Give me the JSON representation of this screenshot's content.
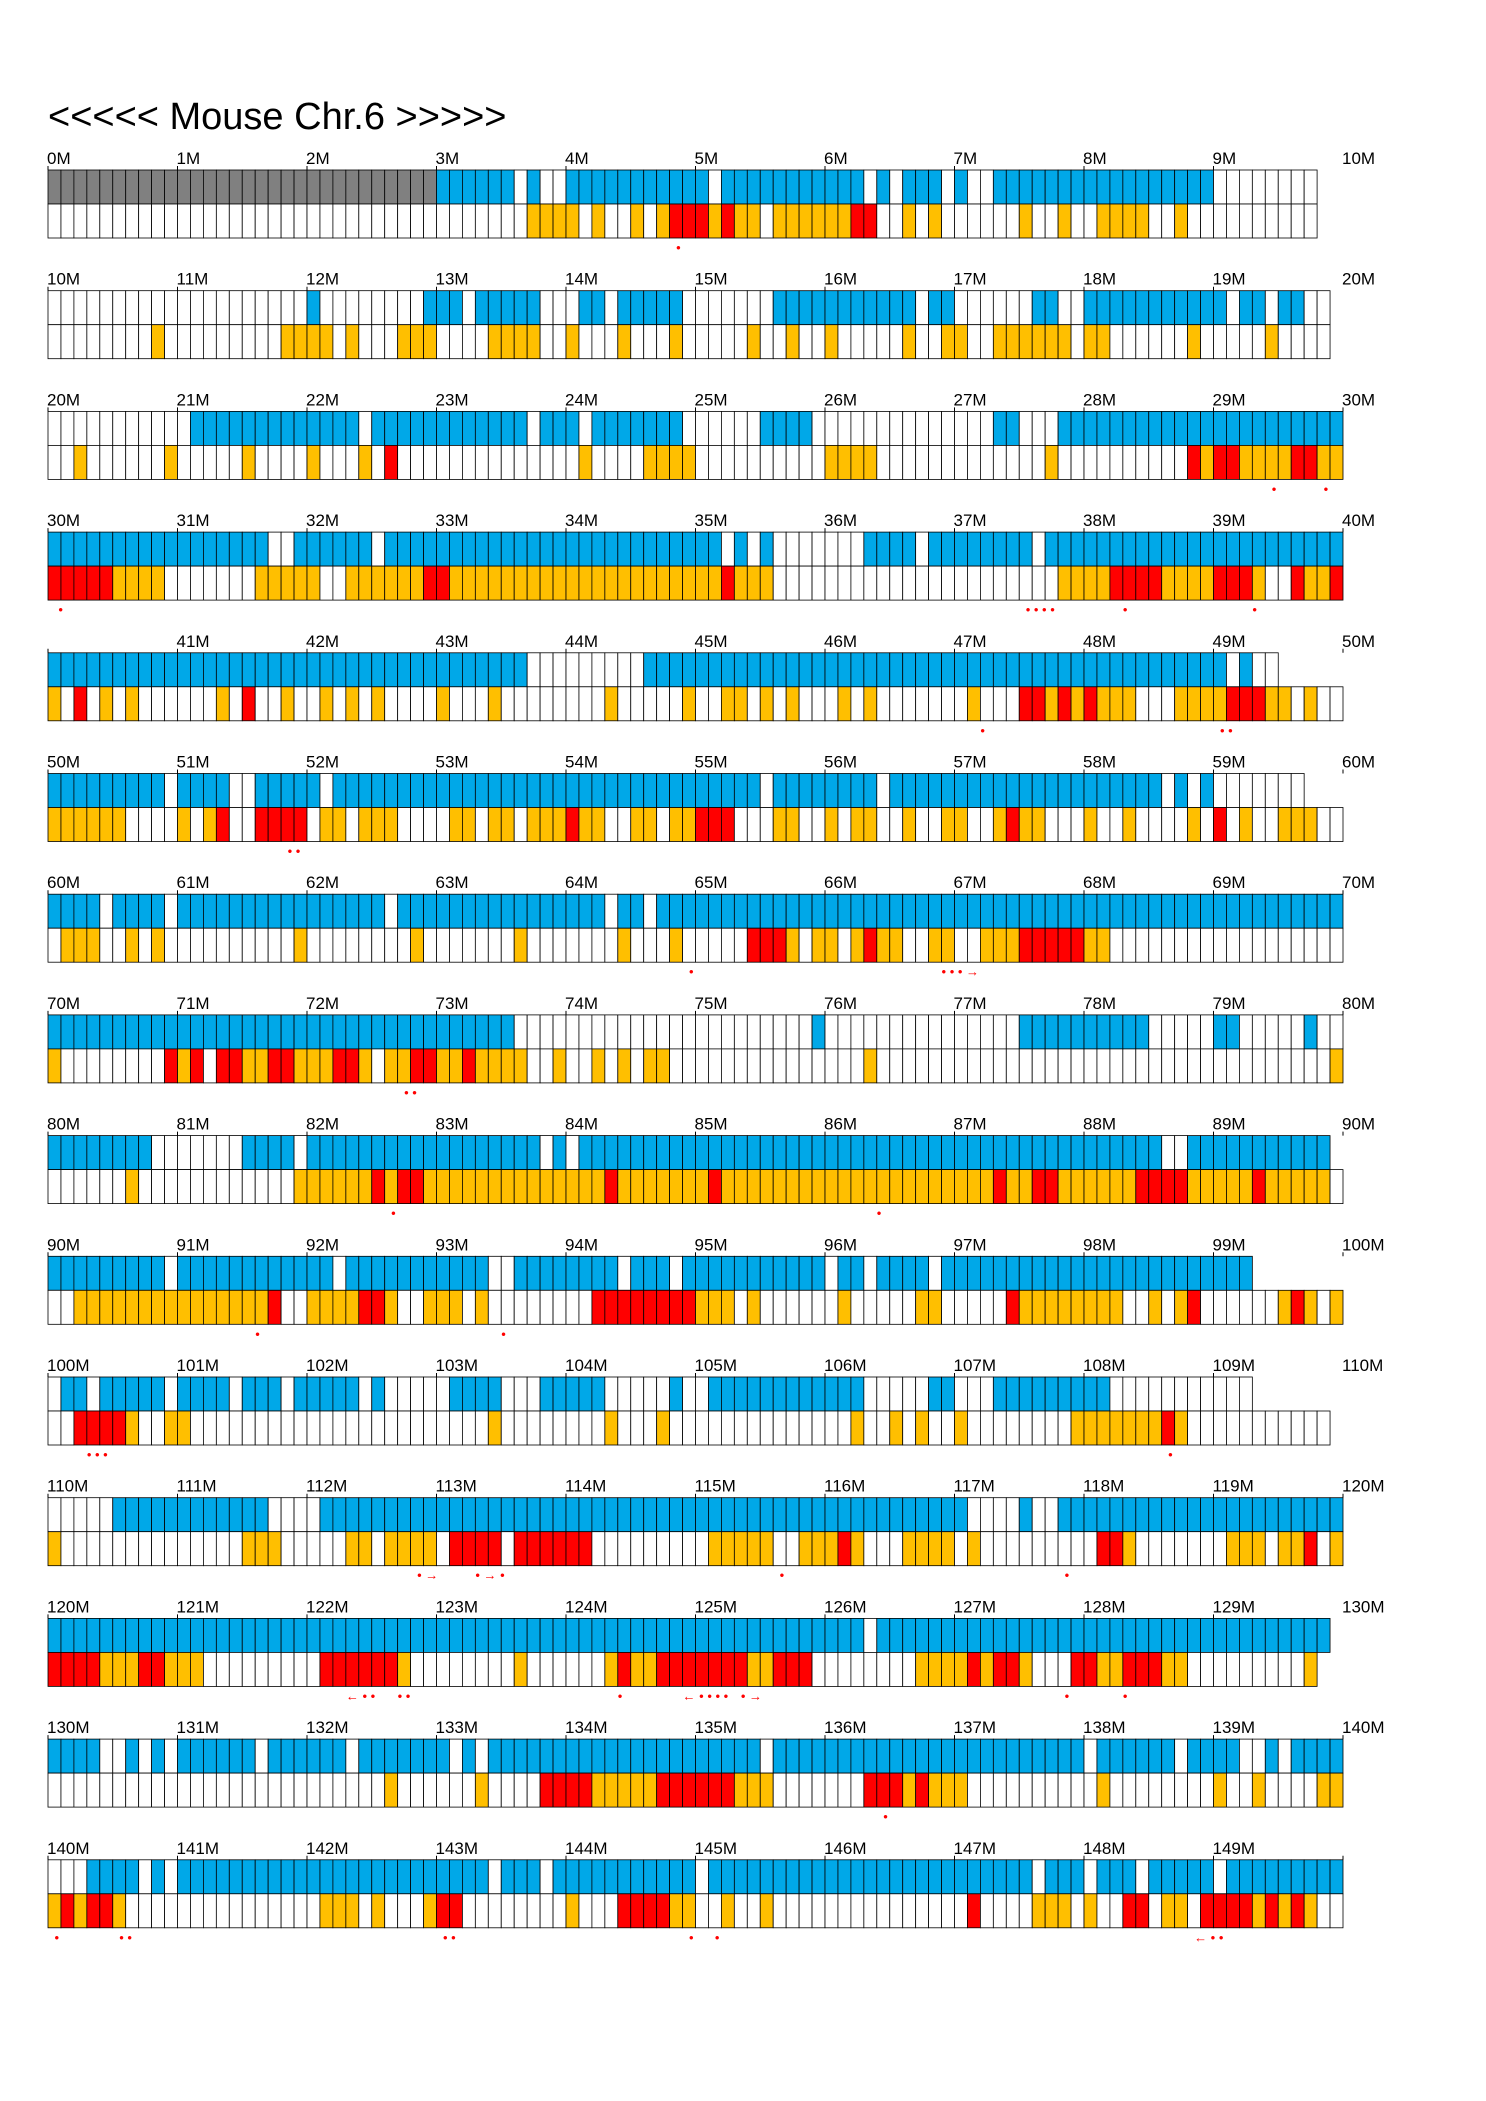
{
  "title": "<<<<< Mouse Chr.6 >>>>>",
  "chart_data": {
    "type": "heatmap",
    "title": "<<<<< Mouse Chr.6 >>>>>",
    "bin_unit": "0.1 Mb",
    "tracks": [
      "upper",
      "lower"
    ],
    "colors": {
      "unsequenced": "#808080",
      "upper_covered": "#00a8e8",
      "lower_covered": "#ffbf00",
      "lower_marked": "#ff0000",
      "empty": "#ffffff",
      "marker": "#ff0000"
    },
    "rows": [
      {
        "start_label": "0M",
        "tick_labels": [
          "0M",
          "1M",
          "2M",
          "3M",
          "4M",
          "5M",
          "6M",
          "7M",
          "8M",
          "9M",
          "10M"
        ],
        "upper": "GGGGGGGGGGGGGGGGGGGGGGGGGGGGGGBBBBBB.B..BBBBBBBBBBB.BBBBBBBBBBB.B.BBB.B..BBBBBBBBBBBBBBBBB........",
        "lower": ".....................................OOOO.O..O.ORRROROO.OOOOOORR..O.O......O..O..OOOO..O..........",
        "markers": [
          {
            "pos": 48.5,
            "text": "•"
          }
        ]
      },
      {
        "start_label": "10M",
        "tick_labels": [
          "10M",
          "11M",
          "12M",
          "13M",
          "14M",
          "15M",
          "16M",
          "17M",
          "18M",
          "19M",
          "20M"
        ],
        "upper": "....................B........BBB.BBBBB...BB.BBBBB.......BBBBBBBBBBB.BB......BB..BBBBBBBBBBB.BB.BB..",
        "lower": "........O.........OOOO.O...OOO....OOOO..O...O...O.....O..O..O.....O..OO..OOOOOO.OO......O.....O....",
        "markers": []
      },
      {
        "start_label": "20M",
        "tick_labels": [
          "20M",
          "21M",
          "22M",
          "23M",
          "24M",
          "25M",
          "26M",
          "27M",
          "28M",
          "29M",
          "30M"
        ],
        "upper": "...........BBBBBBBBBBBBB.BBBBBBBBBBBB.BBB.BBBBBBB......BBBB..............BB...BBBBBBBBBBBBBBBBBBBBBB",
        "lower": "..O......O.....O....O...O.R..............O....OOOO..........OOOO.............O..........RORROOOORROOR",
        "markers": [
          {
            "pos": 94.5,
            "text": "•"
          },
          {
            "pos": 98.5,
            "text": "•"
          }
        ]
      },
      {
        "start_label": "30M",
        "tick_labels": [
          "30M",
          "31M",
          "32M",
          "33M",
          "34M",
          "35M",
          "36M",
          "37M",
          "38M",
          "39M",
          "40M"
        ],
        "upper": "BBBBBBBBBBBBBBBBB..BBBBBB.BBBBBBBBBBBBBBBBBBBBBBBBBB.B.B.......BBBB.BBBBBBBB.BBBBBBBBBBBBBBBBBBBBBBBB",
        "lower": "RRRRROOOO.......OOOOO..OOOOOORROOOOOOOOOOOOOOOOOOOOOROOO......................OOOORRRROOOORRRO..ROORRROOOO",
        "markers": [
          {
            "pos": 0.8,
            "text": "•"
          },
          {
            "pos": 75.5,
            "text": "• • • •"
          },
          {
            "pos": 83,
            "text": "•"
          },
          {
            "pos": 93,
            "text": "•"
          }
        ]
      },
      {
        "start_label": "",
        "tick_labels": [
          "",
          "41M",
          "42M",
          "43M",
          "44M",
          "45M",
          "46M",
          "47M",
          "48M",
          "49M",
          "50M"
        ],
        "upper": "BBBBBBBBBBBBBBBBBBBBBBBBBBBBBBBBBBBBB.........BBBBBBBBBBBBBBBBBBBBBBBBBBBBBBBBBBBBBBBBBBBBB.B..",
        "lower": "O.R.O.O......O.R..O..O.O.O....O...O........O.....O..OO.O.O...O.O.......O...RROROROOO...OOOORRROO.O..",
        "markers": [
          {
            "pos": 72,
            "text": "•"
          },
          {
            "pos": 90.5,
            "text": "• •"
          }
        ]
      },
      {
        "start_label": "50M",
        "tick_labels": [
          "50M",
          "51M",
          "52M",
          "53M",
          "54M",
          "55M",
          "56M",
          "57M",
          "58M",
          "59M",
          "60M"
        ],
        "upper": "BBBBBBBBB.BBBB..BBBBB.BBBBBBBBBBBBBBBBBBBBBBBBBBBBBBBBB.BBBBBBBB.BBBBBBBBBBBBBBBBBBBBB.B.B.......",
        "lower": "OOOOOO....O.OR..RRRR.OO.OOO....OO.OO.OOOROO..OO.OORRR...OO..O.OO..O..OO..OROO...O..O....O.R.O..OOO...O",
        "markers": [
          {
            "pos": 18.5,
            "text": "• •"
          }
        ]
      },
      {
        "start_label": "60M",
        "tick_labels": [
          "60M",
          "61M",
          "62M",
          "63M",
          "64M",
          "65M",
          "66M",
          "67M",
          "68M",
          "69M",
          "70M"
        ],
        "upper": "BBBB.BBBB.BBBBBBBBBBBBBBBB.BBBBBBBBBBBBBBBB.BB.BBBBBBBBBBBBBBBBBBBBBBBBBBBBBBBBBBBBBBBBBBBBBBBBBBBBBB",
        "lower": ".OOO..O.O..........O........O.......O.......O...O.....RRRO.OO.OROO..OO..OOORRRRROO...................O...O",
        "markers": [
          {
            "pos": 49.5,
            "text": "•"
          },
          {
            "pos": 69,
            "text": "• • • →"
          }
        ]
      },
      {
        "start_label": "70M",
        "tick_labels": [
          "70M",
          "71M",
          "72M",
          "73M",
          "74M",
          "75M",
          "76M",
          "77M",
          "78M",
          "79M",
          "80M"
        ],
        "upper": "BBBBBBBBBBBBBBBBBBBBBBBBBBBBBBBBBBBB.......................B...............BBBBBBBBBB.....BB.....B....B.B",
        "lower": "O........ROR.RROORROOORRO.OORROOROOOO..O..O.O.OO...............O...................................O....",
        "markers": [
          {
            "pos": 27.5,
            "text": "• •"
          }
        ]
      },
      {
        "start_label": "80M",
        "tick_labels": [
          "80M",
          "81M",
          "82M",
          "83M",
          "84M",
          "85M",
          "86M",
          "87M",
          "88M",
          "89M",
          "90M"
        ],
        "upper": "BBBBBBBB.......BBBB.BBBBBBBBBBBBBBBBBB.B.BBBBBBBBBBBBBBBBBBBBBBBBBBBBBBBBBBBBBBBBBBBBB..BBBBBBBBBBB",
        "lower": "......O............OOOOOORORROOOOOOOOOOOOOOROOOOOOOROOOOOOOOOOOOOOOOOOOOOROORROOOOOORRRROOOOOROOOOO.O.",
        "markers": [
          {
            "pos": 26.5,
            "text": "•"
          },
          {
            "pos": 64,
            "text": "•"
          }
        ]
      },
      {
        "start_label": "90M",
        "tick_labels": [
          "90M",
          "91M",
          "92M",
          "93M",
          "94M",
          "95M",
          "96M",
          "97M",
          "98M",
          "99M",
          "100M"
        ],
        "upper": "BBBBBBBBB.BBBBBBBBBBBB.BBBBBBBBBBB..BBBBBBBB.BBB.BBBBBBBBBBB.BB.BBBB.BBBBBBBBBBBBBBBBBBBBBBBB",
        "lower": "..OOOOOOOOOOOOOOOR..OOOORRO..OOO.O........RRRRRRRROOO.O......O.....OO.....ROOOOOOOO..O.OR......ORO.OO...OO",
        "markers": [
          {
            "pos": 16,
            "text": "•"
          },
          {
            "pos": 35,
            "text": "•"
          }
        ]
      },
      {
        "start_label": "100M",
        "tick_labels": [
          "100M",
          "101M",
          "102M",
          "103M",
          "104M",
          "105M",
          "106M",
          "107M",
          "108M",
          "109M",
          "110M"
        ],
        "upper": ".BB.BBBBB.BBBB.BBB.BBBBB.B.....BBBB...BBBBB.....B..BBBBBBBBBBBB.....BB...BBBBBBBBB...........",
        "lower": "..RRRRO..OO.......................O........O...O..............O..O.O..O........OOOOOOORO...........",
        "markers": [
          {
            "pos": 3,
            "text": "• • •"
          },
          {
            "pos": 86.5,
            "text": "•"
          }
        ]
      },
      {
        "start_label": "110M",
        "tick_labels": [
          "110M",
          "111M",
          "112M",
          "113M",
          "114M",
          "115M",
          "116M",
          "117M",
          "118M",
          "119M",
          "120M"
        ],
        "upper": ".....BBBBBBBBBBBB....BBBBBBBBBBBBBBBBBBBBBBBBBBBBBBBBBBBBBBBBBBBBBBBBBB....B..BBBBBBBBBBBBBBBBBBBBBBB",
        "lower": "O..............OOO.....OO.OOOO.RRRR.RRRRRR.........OOOOO..OOORO...OOOO.O.........RRO.......OOO.OOR.OR",
        "markers": [
          {
            "pos": 28.5,
            "text": "• →"
          },
          {
            "pos": 33,
            "text": "• → •"
          },
          {
            "pos": 56.5,
            "text": "•"
          },
          {
            "pos": 78.5,
            "text": "•"
          }
        ]
      },
      {
        "start_label": "120M",
        "tick_labels": [
          "120M",
          "121M",
          "122M",
          "123M",
          "124M",
          "125M",
          "126M",
          "127M",
          "128M",
          "129M",
          "130M"
        ],
        "upper": "BBBBBBBBBBBBBBBBBBBBBBBBBBBBBBBBBBBBBBBBBBBBBBBBBBBBBBBBBBBBBBB.BBBBBBBBBBBBBBBBBBBBBBBBBBBBBBBBBBB",
        "lower": "RRRROOORROOO.........RRRRRRO........O......OROORRRRRRROORRR........OOOORORRO...RROORRROO.........O",
        "markers": [
          {
            "pos": 23,
            "text": "← • •"
          },
          {
            "pos": 27,
            "text": "• •"
          },
          {
            "pos": 44,
            "text": "•"
          },
          {
            "pos": 49,
            "text": "← • • • •"
          },
          {
            "pos": 53.5,
            "text": "• →"
          },
          {
            "pos": 78.5,
            "text": "•"
          },
          {
            "pos": 83,
            "text": "•"
          }
        ]
      },
      {
        "start_label": "130M",
        "tick_labels": [
          "130M",
          "131M",
          "132M",
          "133M",
          "134M",
          "135M",
          "136M",
          "137M",
          "138M",
          "139M",
          "140M"
        ],
        "upper": "BBBB..B.B.BBBBBB.BBBBBB.BBBBBBB.B.BBBBBBBBBBBBBBBBBBBBB.BBBBBBBBBBBBBBBBBBBBBBBB.BBBBBB.BBBB..B.BBBBBB",
        "lower": "..........................O......O....RRRROOOOORRRRRROOO.......RRROROOO..........O........O..O....OOO...",
        "markers": [
          {
            "pos": 64.5,
            "text": "•"
          }
        ]
      },
      {
        "start_label": "140M",
        "tick_labels": [
          "140M",
          "141M",
          "142M",
          "143M",
          "144M",
          "145M",
          "146M",
          "147M",
          "148M",
          "149M",
          ""
        ],
        "upper": "...BBBB.B.BBBBBBBBBBBBBBBBBBBBBBBB.BBB.BBBBBBBBBBB.BBBBBBBBBBBBBBBBBBBBBBBBB.BBB.BBB.BBBBB.BBBBBBBBB.",
        "lower": "ORORRO...............OOO.O...ORR........O...RRRROO..O..O...............R....OOO.O..RR.OO.RRRRORORO..........",
        "markers": [
          {
            "pos": 0.5,
            "text": "•"
          },
          {
            "pos": 5.5,
            "text": "• •"
          },
          {
            "pos": 30.5,
            "text": "• •"
          },
          {
            "pos": 49.5,
            "text": "•"
          },
          {
            "pos": 51.5,
            "text": "•"
          },
          {
            "pos": 88.5,
            "text": "← • •"
          }
        ]
      }
    ]
  }
}
